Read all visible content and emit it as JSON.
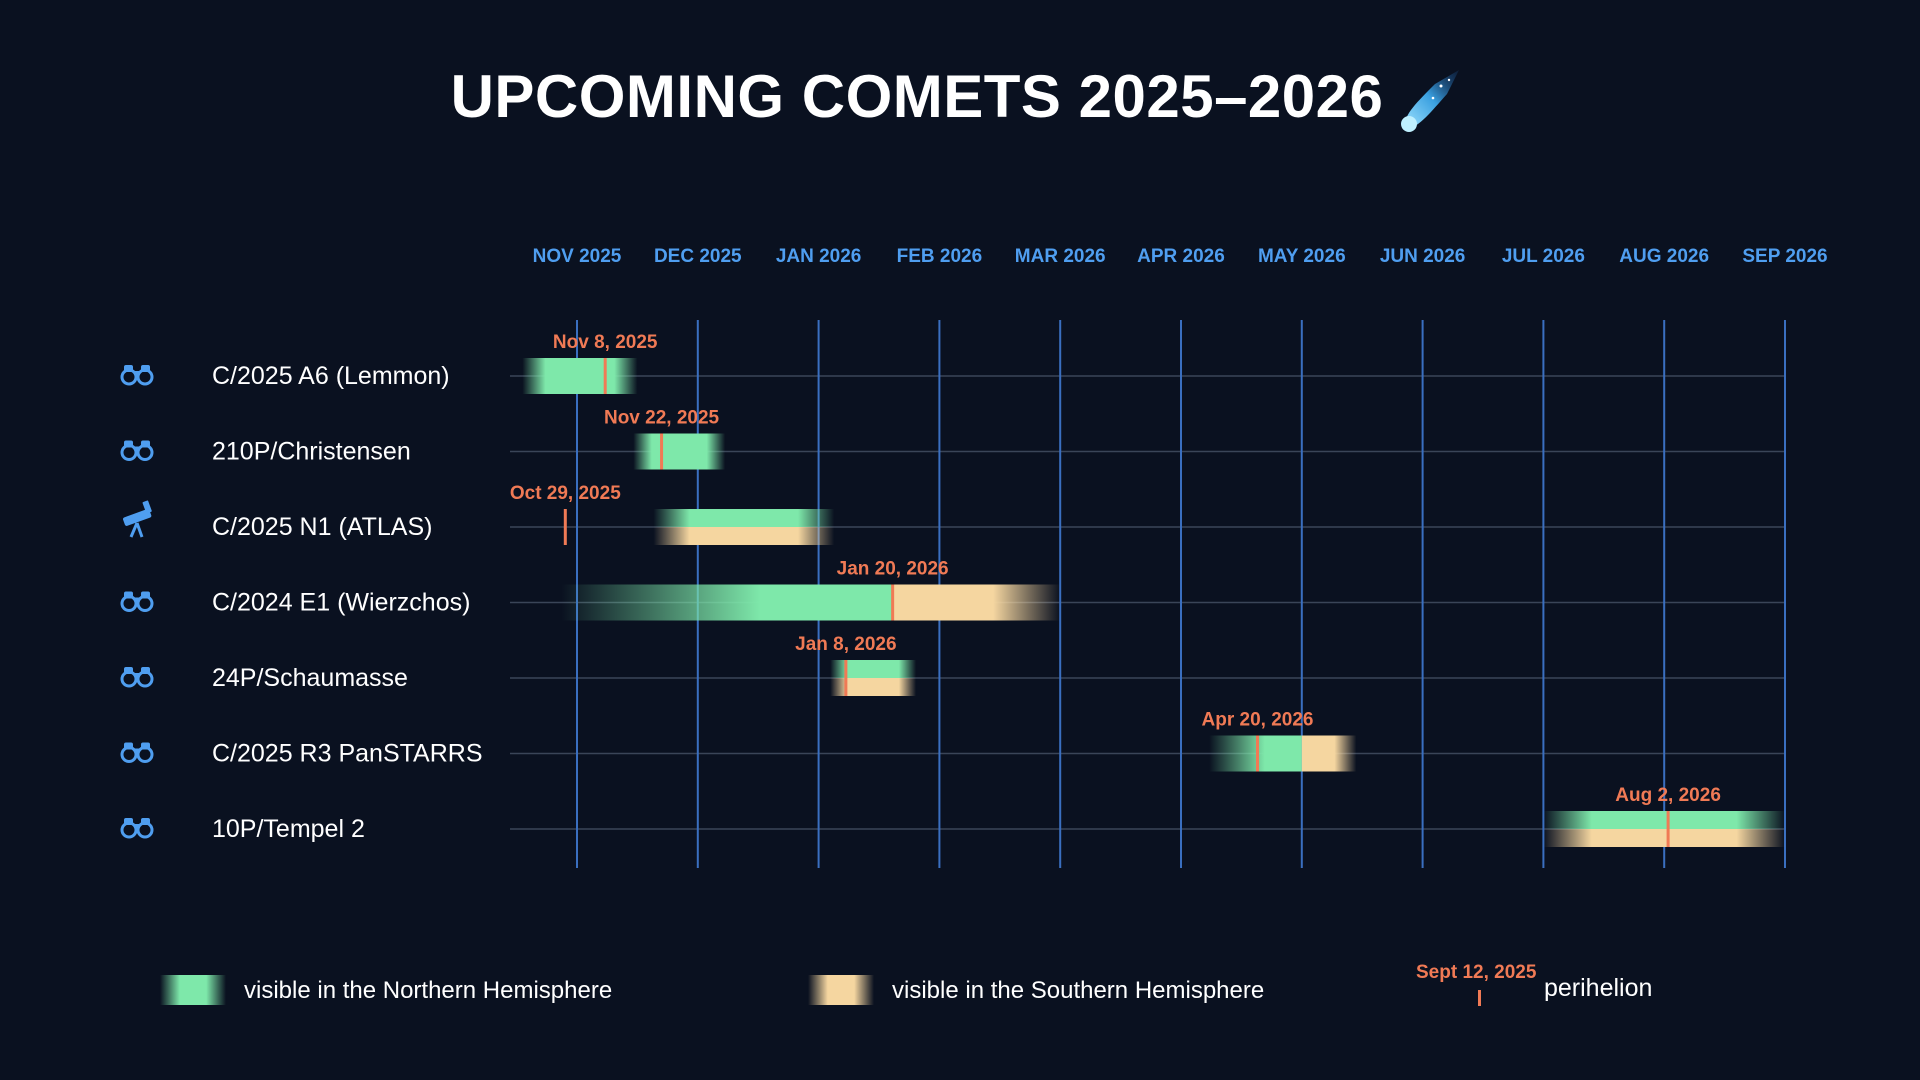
{
  "title": "UPCOMING COMETS 2025–2026",
  "title_icon": "comet-icon",
  "colors": {
    "background": "#0a1120",
    "month_label": "#4f9ef0",
    "month_line": "#3a6fc0",
    "row_line": "#3a4558",
    "north": "#7ee8aa",
    "south": "#f5d6a0",
    "perihelion": "#f07a55",
    "icon": "#4f9ef0"
  },
  "chart_data": {
    "type": "timeline",
    "x_axis": {
      "months": [
        "NOV 2025",
        "DEC 2025",
        "JAN 2026",
        "FEB 2026",
        "MAR 2026",
        "APR 2026",
        "MAY 2026",
        "JUN 2026",
        "JUL 2026",
        "AUG 2026",
        "SEP 2026"
      ],
      "range": [
        "2025-10-25",
        "2026-09-05"
      ]
    },
    "comets": [
      {
        "name": "C/2025 A6 (Lemmon)",
        "icon": "binoculars-icon",
        "perihelion_label": "Nov 8, 2025",
        "perihelion": "2025-11-08",
        "north": {
          "start": "2025-10-18",
          "end": "2025-11-16"
        },
        "south": null
      },
      {
        "name": "210P/Christensen",
        "icon": "binoculars-icon",
        "perihelion_label": "Nov 22, 2025",
        "perihelion": "2025-11-22",
        "north": {
          "start": "2025-11-15",
          "end": "2025-12-08"
        },
        "south": null
      },
      {
        "name": "C/2025 N1 (ATLAS)",
        "icon": "telescope-icon",
        "perihelion_label": "Oct 29, 2025",
        "perihelion": "2025-10-29",
        "north": {
          "start": "2025-11-20",
          "end": "2026-01-05"
        },
        "south": {
          "start": "2025-11-20",
          "end": "2026-01-05"
        }
      },
      {
        "name": "C/2024 E1 (Wierzchos)",
        "icon": "binoculars-icon",
        "perihelion_label": "Jan 20, 2026",
        "perihelion": "2026-01-20",
        "north": {
          "start": "2025-10-28",
          "end": "2026-01-20"
        },
        "south": {
          "start": "2026-01-20",
          "end": "2026-03-01"
        }
      },
      {
        "name": "24P/Schaumasse",
        "icon": "binoculars-icon",
        "perihelion_label": "Jan 8, 2026",
        "perihelion": "2026-01-08",
        "north": {
          "start": "2026-01-04",
          "end": "2026-01-26"
        },
        "south": {
          "start": "2026-01-04",
          "end": "2026-01-26"
        }
      },
      {
        "name": "C/2025 R3 PanSTARRS",
        "icon": "binoculars-icon",
        "perihelion_label": "Apr 20, 2026",
        "perihelion": "2026-04-20",
        "north": {
          "start": "2026-04-08",
          "end": "2026-05-01"
        },
        "south": {
          "start": "2026-05-01",
          "end": "2026-05-15"
        }
      },
      {
        "name": "10P/Tempel 2",
        "icon": "binoculars-icon",
        "perihelion_label": "Aug 2, 2026",
        "perihelion": "2026-08-02",
        "north": {
          "start": "2026-07-01",
          "end": "2026-09-01"
        },
        "south": {
          "start": "2026-07-01",
          "end": "2026-09-01"
        }
      }
    ]
  },
  "legend": {
    "north_label": "visible in the Northern Hemisphere",
    "south_label": "visible in the Southern Hemisphere",
    "perihelion_example": "Sept 12, 2025",
    "perihelion_label": "perihelion"
  }
}
